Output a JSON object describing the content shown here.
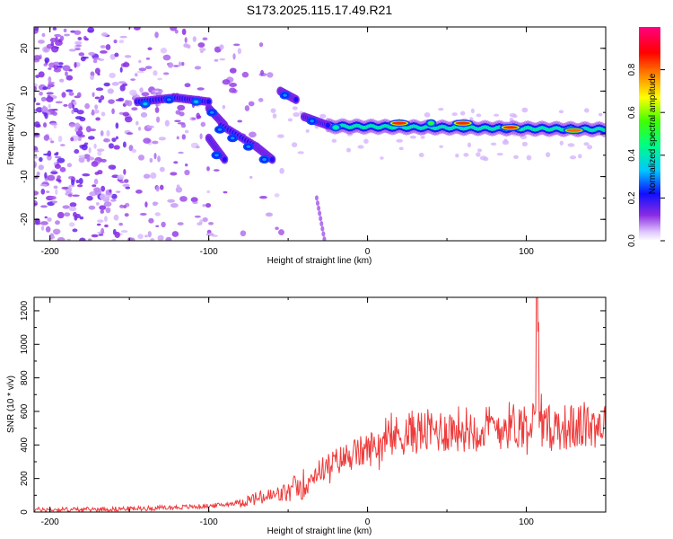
{
  "title": "S173.2025.115.17.49.R21",
  "colorbar": {
    "label": "Normalized spectral amplitude",
    "ticks": [
      "0.0",
      "0.2",
      "0.4",
      "0.6",
      "0.8"
    ],
    "tick_values": [
      0.0,
      0.2,
      0.4,
      0.6,
      0.8
    ],
    "range": [
      0,
      1
    ]
  },
  "chart_data": [
    {
      "type": "heatmap",
      "xlabel": "Height of straight line (km)",
      "ylabel": "Frequency (Hz)",
      "xlim": [
        -210,
        150
      ],
      "ylim": [
        -25,
        25
      ],
      "xticks": [
        -200,
        -100,
        0,
        100
      ],
      "xtick_labels": [
        "-200",
        "-100",
        "0",
        "100"
      ],
      "yticks": [
        -20,
        -10,
        0,
        10,
        20
      ],
      "ytick_labels": [
        "-20",
        "-10",
        "0",
        "10",
        "20"
      ],
      "colormap": "rainbow (purple → blue → cyan → green → yellow → red → magenta)",
      "features": [
        {
          "x": -140,
          "y": 7,
          "amplitude": 0.35
        },
        {
          "x": -125,
          "y": 8,
          "amplitude": 0.3
        },
        {
          "x": -108,
          "y": 7.5,
          "amplitude": 0.35
        },
        {
          "x": -98,
          "y": 5,
          "amplitude": 0.3
        },
        {
          "x": -93,
          "y": 1,
          "amplitude": 0.3
        },
        {
          "x": -85,
          "y": -1,
          "amplitude": 0.3
        },
        {
          "x": -75,
          "y": -3,
          "amplitude": 0.3
        },
        {
          "x": -65,
          "y": -6,
          "amplitude": 0.3
        },
        {
          "x": -95,
          "y": -5,
          "amplitude": 0.3
        },
        {
          "x": -52,
          "y": 9,
          "amplitude": 0.3
        },
        {
          "x": -35,
          "y": 3,
          "amplitude": 0.3
        },
        {
          "x": -20,
          "y": 1.5,
          "amplitude": 0.45
        },
        {
          "x": 20,
          "y": 2.5,
          "amplitude": 0.85
        },
        {
          "x": 40,
          "y": 2.5,
          "amplitude": 0.55
        },
        {
          "x": 60,
          "y": 2.5,
          "amplitude": 0.85
        },
        {
          "x": 90,
          "y": 1.5,
          "amplitude": 0.85
        },
        {
          "x": 130,
          "y": 0.8,
          "amplitude": 0.8
        }
      ]
    },
    {
      "type": "line",
      "xlabel": "Height of straight line (km)",
      "ylabel": "SNR (10 * v/v)",
      "xlim": [
        -210,
        150
      ],
      "ylim": [
        0,
        1280
      ],
      "xticks": [
        -200,
        -100,
        0,
        100
      ],
      "xtick_labels": [
        "-200",
        "-100",
        "0",
        "100"
      ],
      "yticks": [
        0,
        200,
        400,
        600,
        800,
        1000,
        1200
      ],
      "ytick_labels": [
        "0",
        "200",
        "400",
        "600",
        "800",
        "1000",
        "1200"
      ],
      "color": "#ef3b3b",
      "series": [
        {
          "x": [
            -210,
            -200,
            -180,
            -160,
            -140,
            -120,
            -100,
            -90,
            -80,
            -70,
            -60,
            -50,
            -40,
            -30,
            -20,
            -10,
            0,
            10,
            20,
            30,
            40,
            50,
            60,
            70,
            80,
            90,
            100,
            105,
            107,
            110,
            120,
            130,
            140,
            150
          ],
          "values": [
            15,
            15,
            15,
            18,
            22,
            28,
            35,
            45,
            60,
            80,
            95,
            115,
            170,
            250,
            300,
            340,
            370,
            420,
            460,
            480,
            480,
            490,
            500,
            495,
            505,
            520,
            520,
            540,
            1280,
            490,
            510,
            505,
            520,
            530
          ]
        }
      ]
    }
  ]
}
